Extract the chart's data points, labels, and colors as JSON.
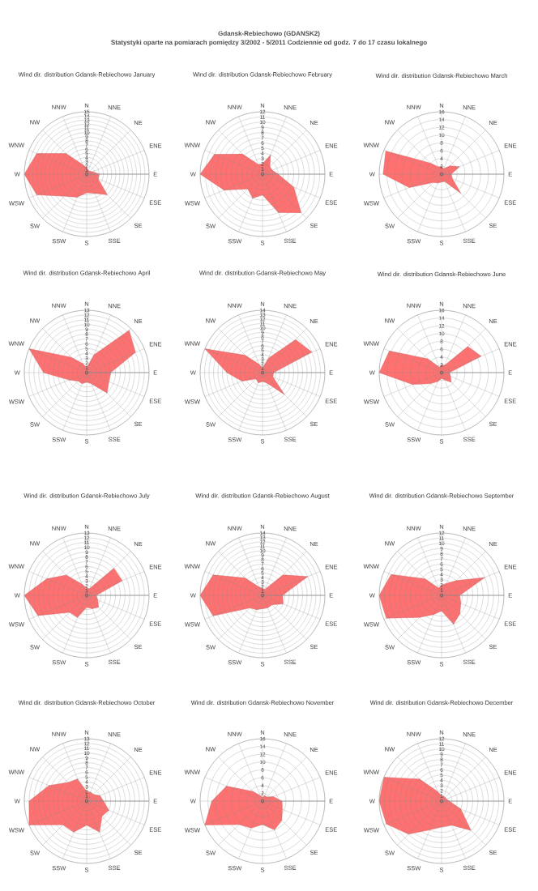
{
  "chart_data": [
    {
      "type": "other",
      "title": "Gdansk-Rebiechowo (GDANSK2)",
      "subtitle": "Statystyki oparte na pomiarach pomiędzy 3/2002 - 5/2011 Codziennie od godz. 7 do 17 czasu lokalnego"
    },
    {
      "type": "radar",
      "title": "Wind dir. distribution Gdansk-Rebiechowo January",
      "categories": [
        "N",
        "NNE",
        "NE",
        "ENE",
        "E",
        "ESE",
        "SE",
        "SSE",
        "S",
        "SSW",
        "SW",
        "WSW",
        "W",
        "WNW",
        "NW",
        "NNW"
      ],
      "series": [
        {
          "color": "#ff7070",
          "values": [
            1.5,
            1,
            1,
            1.5,
            3,
            3,
            7,
            5,
            4.5,
            6,
            7.5,
            13,
            15,
            13,
            7,
            2.5
          ]
        }
      ],
      "ylim": [
        0,
        15
      ],
      "yticks": [
        0,
        1,
        2,
        3,
        4,
        5,
        6,
        7,
        8,
        9,
        10,
        11,
        12,
        13,
        14,
        15
      ],
      "grid": true
    },
    {
      "type": "radar",
      "title": "Wind dir. distribution Gdansk-Rebiechowo February",
      "categories": [
        "N",
        "NNE",
        "NE",
        "ENE",
        "E",
        "ESE",
        "SE",
        "SSE",
        "S",
        "SSW",
        "SW",
        "WSW",
        "W",
        "WNW",
        "NW",
        "NNW"
      ],
      "series": [
        {
          "color": "#ff7070",
          "values": [
            2,
            4,
            2,
            2,
            3,
            6.5,
            10.5,
            8,
            4,
            5,
            4,
            8,
            12,
            10,
            5.5,
            2
          ]
        }
      ],
      "ylim": [
        0,
        12
      ],
      "yticks": [
        0,
        1,
        2,
        3,
        4,
        5,
        6,
        7,
        8,
        9,
        10,
        11,
        12
      ],
      "grid": true
    },
    {
      "type": "radar",
      "title": "Wind dir. distribution Gdansk-Rebiechowo March",
      "categories": [
        "N",
        "NNE",
        "NE",
        "ENE",
        "E",
        "ESE",
        "SE",
        "SSE",
        "S",
        "SSW",
        "SW",
        "WSW",
        "W",
        "WNW",
        "NW",
        "NNW"
      ],
      "series": [
        {
          "color": "#ff7070",
          "values": [
            2,
            1.5,
            3,
            5,
            2.5,
            3,
            7,
            2,
            2,
            2.5,
            3,
            9,
            15,
            15.5,
            4,
            2
          ]
        }
      ],
      "ylim": [
        0,
        16
      ],
      "yticks": [
        0,
        2,
        4,
        6,
        8,
        10,
        12,
        14,
        16
      ],
      "grid": true
    },
    {
      "type": "radar",
      "title": "Wind dir. distribution Gdansk-Rebiechowo April",
      "categories": [
        "N",
        "NNE",
        "NE",
        "ENE",
        "E",
        "ESE",
        "SE",
        "SSE",
        "S",
        "SSW",
        "SW",
        "WSW",
        "W",
        "WNW",
        "NW",
        "NNW"
      ],
      "series": [
        {
          "color": "#ff7070",
          "values": [
            1,
            4,
            12.5,
            11,
            5,
            5,
            6,
            2.5,
            2,
            2.5,
            2.5,
            4,
            9,
            13,
            4.5,
            2
          ]
        }
      ],
      "ylim": [
        0,
        13
      ],
      "yticks": [
        0,
        1,
        2,
        3,
        4,
        5,
        6,
        7,
        8,
        9,
        10,
        11,
        12,
        13
      ],
      "grid": true
    },
    {
      "type": "radar",
      "title": "Wind dir. distribution Gdansk-Rebiechowo May",
      "categories": [
        "N",
        "NNE",
        "NE",
        "ENE",
        "E",
        "ESE",
        "SE",
        "SSE",
        "S",
        "SSW",
        "SW",
        "WSW",
        "W",
        "WNW",
        "NW",
        "NNW"
      ],
      "series": [
        {
          "color": "#ff7070",
          "values": [
            1,
            3.5,
            10.5,
            12,
            2.5,
            2.5,
            7,
            2.5,
            2,
            2.5,
            2,
            5,
            8,
            14,
            5.5,
            2
          ]
        }
      ],
      "ylim": [
        0,
        14
      ],
      "yticks": [
        0,
        1,
        2,
        3,
        4,
        5,
        6,
        7,
        8,
        9,
        10,
        11,
        12,
        13,
        14
      ],
      "grid": true
    },
    {
      "type": "radar",
      "title": "Wind dir. distribution Gdansk-Rebiechowo June",
      "categories": [
        "N",
        "NNE",
        "NE",
        "ENE",
        "E",
        "ESE",
        "SE",
        "SSE",
        "S",
        "SSW",
        "SW",
        "WSW",
        "W",
        "WNW",
        "NW",
        "NNW"
      ],
      "series": [
        {
          "color": "#ff7070",
          "values": [
            2,
            2,
            9.5,
            11,
            2,
            2.5,
            3.5,
            2,
            1.5,
            2.5,
            4,
            8,
            16,
            14.5,
            5,
            1.5
          ]
        }
      ],
      "ylim": [
        0,
        16
      ],
      "yticks": [
        0,
        2,
        4,
        6,
        8,
        10,
        12,
        14,
        16
      ],
      "grid": true
    },
    {
      "type": "radar",
      "title": "Wind dir. distribution Gdansk-Rebiechowo July",
      "categories": [
        "N",
        "NNE",
        "NE",
        "ENE",
        "E",
        "ESE",
        "SE",
        "SSE",
        "S",
        "SSW",
        "SW",
        "WSW",
        "W",
        "WNW",
        "NW",
        "NNW"
      ],
      "series": [
        {
          "color": "#ff7070",
          "values": [
            1.5,
            1.5,
            8,
            8,
            2,
            2.5,
            3.5,
            3,
            2.5,
            5,
            5,
            11,
            13,
            9,
            6,
            2.5
          ]
        }
      ],
      "ylim": [
        0,
        13
      ],
      "yticks": [
        0,
        1,
        2,
        3,
        4,
        5,
        6,
        7,
        8,
        9,
        10,
        11,
        12,
        13
      ],
      "grid": true
    },
    {
      "type": "radar",
      "title": "Wind dir. distribution Gdansk-Rebiechowo August",
      "categories": [
        "N",
        "NNE",
        "NE",
        "ENE",
        "E",
        "ESE",
        "SE",
        "SSE",
        "S",
        "SSW",
        "SW",
        "WSW",
        "W",
        "WNW",
        "NW",
        "NNW"
      ],
      "series": [
        {
          "color": "#ff7070",
          "values": [
            1.5,
            1.5,
            6.5,
            11,
            4.5,
            5,
            3,
            3,
            3,
            3.5,
            4,
            12,
            14,
            12,
            5.5,
            2
          ]
        }
      ],
      "ylim": [
        0,
        14
      ],
      "yticks": [
        0,
        1,
        2,
        3,
        4,
        5,
        6,
        7,
        8,
        9,
        10,
        11,
        12,
        13,
        14
      ],
      "grid": true
    },
    {
      "type": "radar",
      "title": "Wind dir. distribution Gdansk-Rebiechowo September",
      "categories": [
        "N",
        "NNE",
        "NE",
        "ENE",
        "E",
        "ESE",
        "SE",
        "SSE",
        "S",
        "SSW",
        "SW",
        "WSW",
        "W",
        "WNW",
        "NW",
        "NNW"
      ],
      "series": [
        {
          "color": "#ff7070",
          "values": [
            2,
            2.5,
            4,
            9,
            3.5,
            4,
            5,
            6,
            3,
            4,
            6,
            11.5,
            12,
            10.5,
            4.5,
            1.5
          ]
        }
      ],
      "ylim": [
        0,
        12
      ],
      "yticks": [
        0,
        1,
        2,
        3,
        4,
        5,
        6,
        7,
        8,
        9,
        10,
        11,
        12
      ],
      "grid": true
    },
    {
      "type": "radar",
      "title": "Wind dir. distribution Gdansk-Rebiechowo October",
      "categories": [
        "N",
        "NNE",
        "NE",
        "ENE",
        "E",
        "ESE",
        "SE",
        "SSE",
        "S",
        "SSW",
        "SW",
        "WSW",
        "W",
        "WNW",
        "NW",
        "NNW"
      ],
      "series": [
        {
          "color": "#ff7070",
          "values": [
            2,
            2,
            2,
            3,
            3.5,
            5,
            4.5,
            7,
            5,
            7,
            7,
            13,
            12,
            8.5,
            5.5,
            5
          ]
        }
      ],
      "ylim": [
        0,
        13
      ],
      "yticks": [
        0,
        1,
        2,
        3,
        4,
        5,
        6,
        7,
        8,
        9,
        10,
        11,
        12,
        13
      ],
      "grid": true
    },
    {
      "type": "radar",
      "title": "Wind dir. distribution Gdansk-Rebiechowo November",
      "categories": [
        "N",
        "NNE",
        "NE",
        "ENE",
        "E",
        "ESE",
        "SE",
        "SSE",
        "S",
        "SSW",
        "SW",
        "WSW",
        "W",
        "WNW",
        "NW",
        "NNW"
      ],
      "series": [
        {
          "color": "#ff7070",
          "values": [
            1,
            1.5,
            1.5,
            3,
            5,
            5.5,
            7,
            8,
            6,
            7.5,
            8.5,
            16,
            13,
            10,
            3.5,
            1.5
          ]
        }
      ],
      "ylim": [
        0,
        16
      ],
      "yticks": [
        0,
        2,
        4,
        6,
        8,
        10,
        12,
        14,
        16
      ],
      "grid": true
    },
    {
      "type": "radar",
      "title": "Wind dir. distribution Gdansk-Rebiechowo December",
      "categories": [
        "N",
        "NNE",
        "NE",
        "ENE",
        "E",
        "ESE",
        "SE",
        "SSE",
        "S",
        "SSW",
        "SW",
        "WSW",
        "W",
        "WNW",
        "NW",
        "NNW"
      ],
      "series": [
        {
          "color": "#ff7070",
          "values": [
            1,
            1,
            1,
            1,
            1.5,
            4,
            8,
            5,
            5,
            6,
            9,
            11.5,
            12,
            12,
            6,
            2
          ]
        }
      ],
      "ylim": [
        0,
        12
      ],
      "yticks": [
        0,
        1,
        2,
        3,
        4,
        5,
        6,
        7,
        8,
        9,
        10,
        11,
        12
      ],
      "grid": true
    }
  ]
}
